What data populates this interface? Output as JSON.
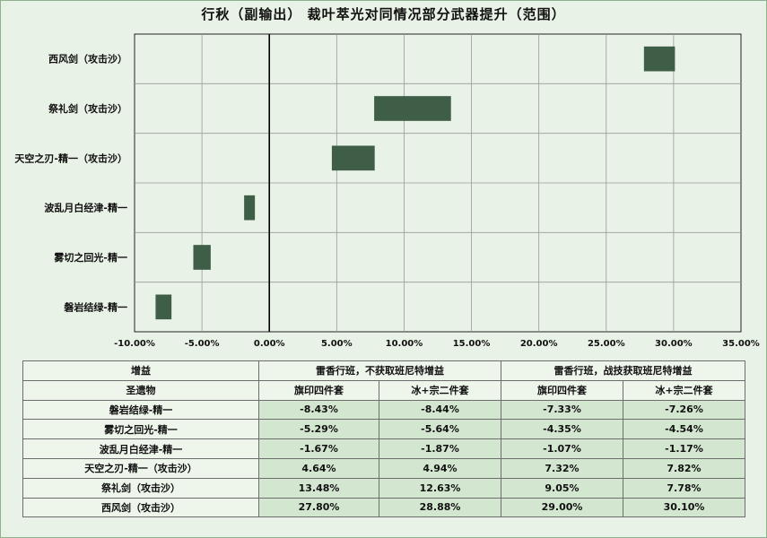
{
  "colors": {
    "bar": "#3f5e48",
    "grid": "#9a9a9a",
    "zero_line": "#000000",
    "plot_bg": "#e9f2e6",
    "table_value_bg": "#d3e7d0"
  },
  "chart_data": {
    "type": "bar",
    "orientation": "horizontal-floating",
    "title": "行秋（副输出） 裁叶萃光对同情况部分武器提升（范围）",
    "categories": [
      "西风剑（攻击沙）",
      "祭礼剑（攻击沙）",
      "天空之刃-精一（攻击沙）",
      "波乱月白经津-精一",
      "雾切之回光-精一",
      "磐岩结绿-精一"
    ],
    "ranges": [
      [
        27.8,
        30.1
      ],
      [
        7.78,
        13.48
      ],
      [
        4.64,
        7.82
      ],
      [
        -1.87,
        -1.07
      ],
      [
        -5.64,
        -4.35
      ],
      [
        -8.44,
        -7.26
      ]
    ],
    "xlim": [
      -10,
      35
    ],
    "xticks": [
      -10,
      -5,
      0,
      5,
      10,
      15,
      20,
      25,
      30,
      35
    ],
    "xtick_labels": [
      "-10.00%",
      "-5.00%",
      "0.00%",
      "5.00%",
      "10.00%",
      "15.00%",
      "20.00%",
      "25.00%",
      "30.00%",
      "35.00%"
    ],
    "grid": true,
    "legend": "none"
  },
  "table": {
    "header1": {
      "c0": "增益",
      "g1": "雷香行班，不获取班尼特增益",
      "g2": "雷香行班，战技获取班尼特增益"
    },
    "header2": {
      "c0": "圣遗物",
      "c1": "旗印四件套",
      "c2": "冰+宗二件套",
      "c3": "旗印四件套",
      "c4": "冰+宗二件套"
    },
    "rows": [
      {
        "name": "磐岩结绿-精一",
        "v1": "-8.43%",
        "v2": "-8.44%",
        "v3": "-7.33%",
        "v4": "-7.26%"
      },
      {
        "name": "雾切之回光-精一",
        "v1": "-5.29%",
        "v2": "-5.64%",
        "v3": "-4.35%",
        "v4": "-4.54%"
      },
      {
        "name": "波乱月白经津-精一",
        "v1": "-1.67%",
        "v2": "-1.87%",
        "v3": "-1.07%",
        "v4": "-1.17%"
      },
      {
        "name": "天空之刃-精一（攻击沙）",
        "v1": "4.64%",
        "v2": "4.94%",
        "v3": "7.32%",
        "v4": "7.82%"
      },
      {
        "name": "祭礼剑（攻击沙）",
        "v1": "13.48%",
        "v2": "12.63%",
        "v3": "9.05%",
        "v4": "7.78%"
      },
      {
        "name": "西风剑（攻击沙）",
        "v1": "27.80%",
        "v2": "28.88%",
        "v3": "29.00%",
        "v4": "30.10%"
      }
    ]
  }
}
